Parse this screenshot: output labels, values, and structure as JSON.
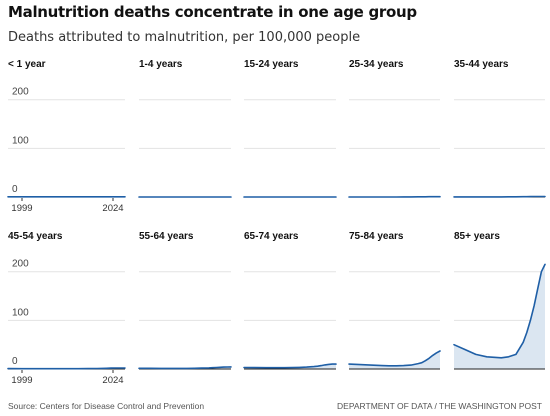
{
  "title": "Malnutrition deaths concentrate in one age group",
  "subtitle": "Deaths attributed to malnutrition, per 100,000 people",
  "source": "Source: Centers for Disease Control and Prevention",
  "credit": "DEPARTMENT OF DATA / THE WASHINGTON POST",
  "colors": {
    "line": "#1f5fa6",
    "fill": "#dbe6f1",
    "grid": "#e3e3e3",
    "baseline": "#222222"
  },
  "chart_data": {
    "type": "area",
    "layout": "small multiples",
    "x": [
      1999,
      2002,
      2005,
      2008,
      2010,
      2012,
      2014,
      2016,
      2018,
      2019,
      2020,
      2021,
      2022,
      2023,
      2024
    ],
    "xticks": [
      "1999",
      "2024"
    ],
    "yticks": [
      "200",
      "100",
      "0"
    ],
    "ylim": [
      0,
      220
    ],
    "xlim": [
      1999,
      2024
    ],
    "grid": true,
    "series": [
      {
        "name": "< 1 year",
        "values": [
          0.5,
          0.5,
          0.5,
          0.5,
          0.5,
          0.5,
          0.5,
          0.5,
          0.5,
          0.5,
          0.5,
          0.5,
          0.5,
          0.5,
          0.5
        ]
      },
      {
        "name": "1-4 years",
        "values": [
          0.1,
          0.1,
          0.1,
          0.1,
          0.1,
          0.1,
          0.1,
          0.1,
          0.1,
          0.1,
          0.1,
          0.1,
          0.1,
          0.1,
          0.1
        ]
      },
      {
        "name": "15-24 years",
        "values": [
          0.1,
          0.1,
          0.1,
          0.1,
          0.1,
          0.1,
          0.1,
          0.1,
          0.1,
          0.1,
          0.1,
          0.1,
          0.1,
          0.1,
          0.1
        ]
      },
      {
        "name": "25-34 years",
        "values": [
          0.1,
          0.1,
          0.1,
          0.1,
          0.1,
          0.1,
          0.2,
          0.3,
          0.4,
          0.4,
          0.5,
          0.6,
          0.6,
          0.6,
          0.6
        ]
      },
      {
        "name": "35-44 years",
        "values": [
          0.3,
          0.3,
          0.3,
          0.3,
          0.3,
          0.3,
          0.4,
          0.5,
          0.6,
          0.7,
          0.8,
          1,
          1,
          1,
          1
        ]
      },
      {
        "name": "45-54 years",
        "values": [
          0.8,
          0.7,
          0.7,
          0.6,
          0.6,
          0.6,
          0.7,
          0.8,
          1,
          1.2,
          1.5,
          1.8,
          2,
          2,
          2
        ]
      },
      {
        "name": "55-64 years",
        "values": [
          1.5,
          1.4,
          1.3,
          1.2,
          1.2,
          1.3,
          1.5,
          1.8,
          2.2,
          2.6,
          3,
          3.5,
          4,
          4.2,
          4.4
        ]
      },
      {
        "name": "65-74 years",
        "values": [
          3,
          2.9,
          2.7,
          2.6,
          2.6,
          2.8,
          3.2,
          4,
          5,
          5.8,
          7,
          8.5,
          9.5,
          10,
          10
        ]
      },
      {
        "name": "75-84 years",
        "values": [
          10,
          9,
          8,
          7,
          6.5,
          6.5,
          7,
          8,
          11,
          13,
          17,
          22,
          28,
          33,
          37
        ]
      },
      {
        "name": "85+ years",
        "values": [
          50,
          40,
          30,
          25,
          24,
          23,
          25,
          30,
          55,
          75,
          100,
          130,
          165,
          200,
          215
        ]
      }
    ]
  }
}
